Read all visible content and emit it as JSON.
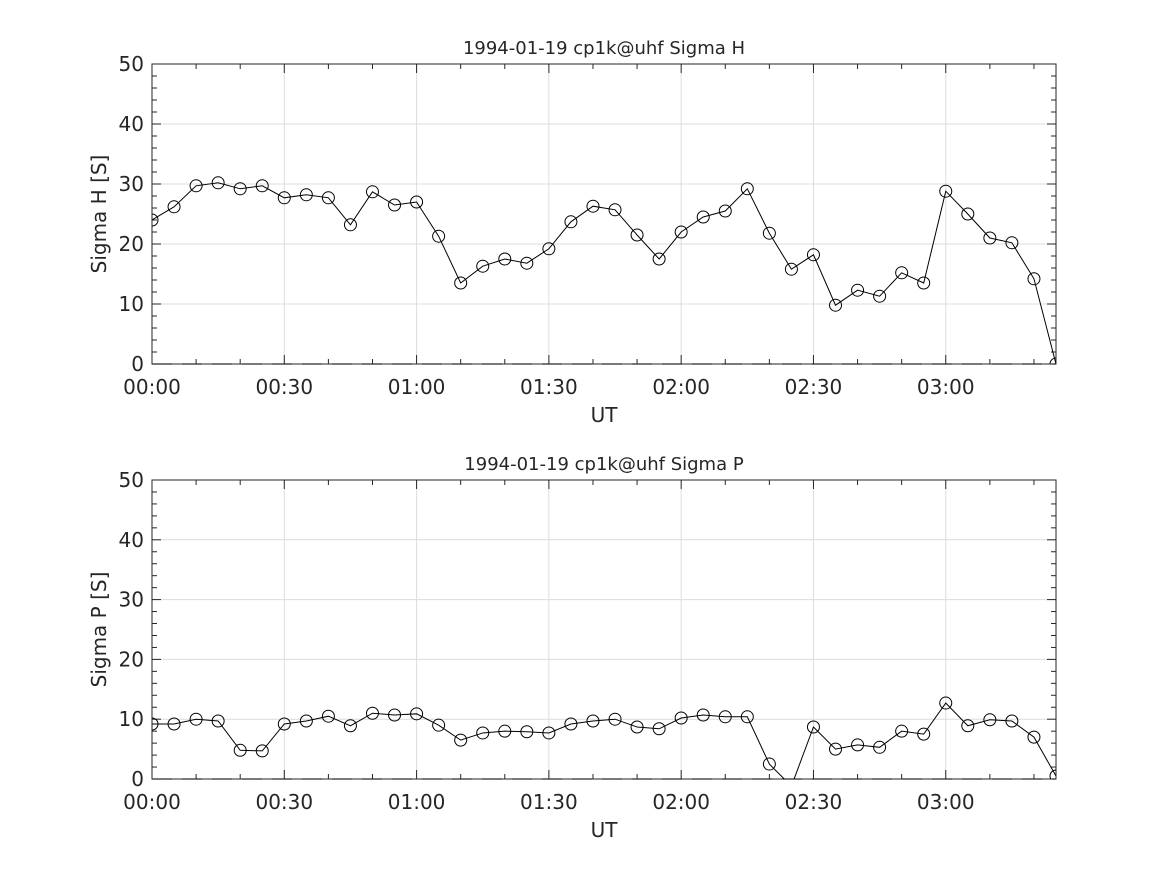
{
  "chart_data": [
    {
      "type": "line",
      "title": "1994-01-19  cp1k@uhf Sigma H",
      "xlabel": "UT",
      "ylabel": "Sigma H [S]",
      "xlim_minutes": [
        0,
        205
      ],
      "ylim": [
        0,
        50
      ],
      "grid": true,
      "xticks": [
        {
          "m": 0,
          "label": "00:00"
        },
        {
          "m": 30,
          "label": "00:30"
        },
        {
          "m": 60,
          "label": "01:00"
        },
        {
          "m": 90,
          "label": "01:30"
        },
        {
          "m": 120,
          "label": "02:00"
        },
        {
          "m": 150,
          "label": "02:30"
        },
        {
          "m": 180,
          "label": "03:00"
        }
      ],
      "yticks": [
        "0",
        "10",
        "20",
        "30",
        "40",
        "50"
      ],
      "x_step_minutes": 5,
      "values": [
        24,
        26.2,
        29.7,
        30.2,
        29.2,
        29.7,
        27.7,
        28.2,
        27.7,
        23.2,
        28.7,
        26.5,
        27,
        21.3,
        13.5,
        16.3,
        17.5,
        16.8,
        19.2,
        23.7,
        26.3,
        25.7,
        21.5,
        17.5,
        22,
        24.5,
        25.5,
        29.2,
        21.8,
        15.8,
        18.2,
        9.8,
        12.3,
        11.3,
        15.2,
        13.5,
        28.8,
        25,
        21,
        20.2,
        14.2,
        0
      ]
    },
    {
      "type": "line",
      "title": "1994-01-19  cp1k@uhf Sigma P",
      "xlabel": "UT",
      "ylabel": "Sigma P [S]",
      "xlim_minutes": [
        0,
        205
      ],
      "ylim": [
        0,
        50
      ],
      "grid": true,
      "xticks": [
        {
          "m": 0,
          "label": "00:00"
        },
        {
          "m": 30,
          "label": "00:30"
        },
        {
          "m": 60,
          "label": "01:00"
        },
        {
          "m": 90,
          "label": "01:30"
        },
        {
          "m": 120,
          "label": "02:00"
        },
        {
          "m": 150,
          "label": "02:30"
        },
        {
          "m": 180,
          "label": "03:00"
        }
      ],
      "yticks": [
        "0",
        "10",
        "20",
        "30",
        "40",
        "50"
      ],
      "x_step_minutes": 5,
      "values": [
        9.2,
        9.2,
        10,
        9.7,
        4.8,
        4.7,
        9.2,
        9.7,
        10.5,
        8.9,
        11,
        10.7,
        10.9,
        9,
        6.5,
        7.7,
        8,
        7.9,
        7.7,
        9.2,
        9.7,
        10,
        8.7,
        8.4,
        10.2,
        10.7,
        10.4,
        10.4,
        2.5,
        -1.2,
        8.7,
        5,
        5.7,
        5.3,
        8,
        7.5,
        12.7,
        8.9,
        9.9,
        9.7,
        7,
        0.5
      ]
    }
  ]
}
